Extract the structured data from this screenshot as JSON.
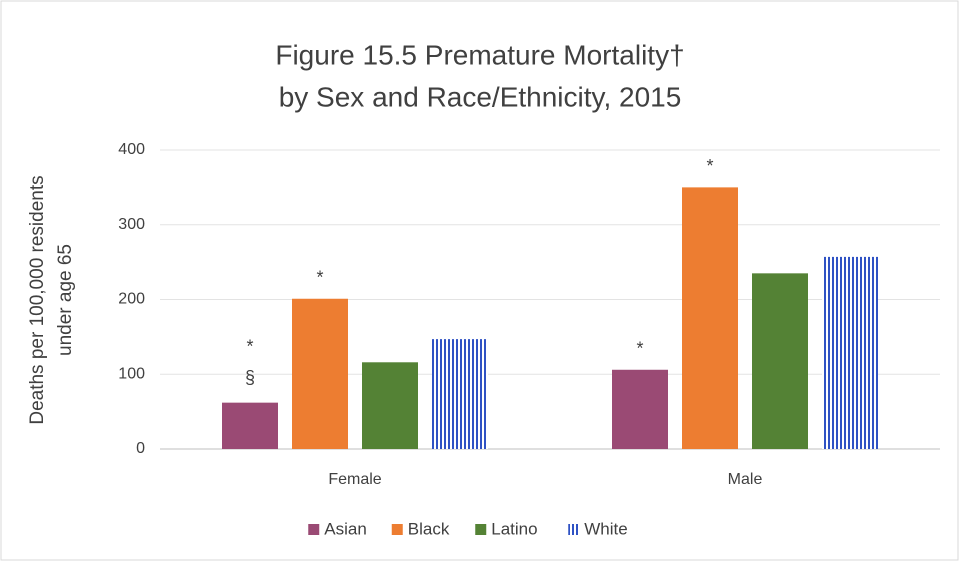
{
  "chart_data": {
    "type": "bar",
    "title": [
      "Figure 15.5 Premature Mortality†",
      "by Sex and Race/Ethnicity, 2015"
    ],
    "y_label": [
      "Deaths per 100,000 residents",
      "under age 65"
    ],
    "categories": [
      "Female",
      "Male"
    ],
    "series": [
      {
        "name": "Asian",
        "color": "#9a4a74",
        "values": [
          62,
          106
        ]
      },
      {
        "name": "Black",
        "color": "#ed7d31",
        "values": [
          201,
          350
        ]
      },
      {
        "name": "Latino",
        "color": "#548235",
        "values": [
          116,
          235
        ]
      },
      {
        "name": "White",
        "color": "#2f52c4",
        "pattern": "vertical-stripes",
        "values": [
          147,
          257
        ]
      }
    ],
    "annotations": [
      {
        "series": 0,
        "category": 0,
        "texts": [
          "*",
          "§"
        ]
      },
      {
        "series": 0,
        "category": 1,
        "texts": [
          "*"
        ]
      },
      {
        "series": 1,
        "category": 0,
        "texts": [
          "*"
        ]
      },
      {
        "series": 1,
        "category": 1,
        "texts": [
          "*"
        ]
      }
    ],
    "ylim": [
      0,
      400
    ],
    "yticks": [
      0,
      100,
      200,
      300,
      400
    ],
    "grid": true,
    "legend": "bottom"
  }
}
